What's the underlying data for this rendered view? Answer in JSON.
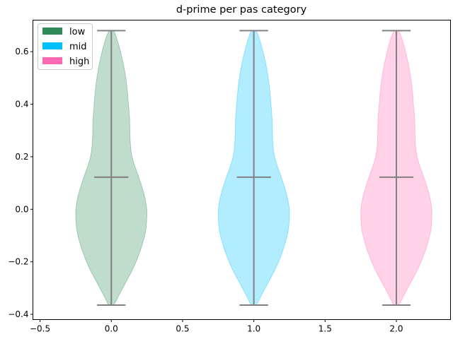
{
  "chart_data": {
    "type": "violin",
    "title": "d-prime per pas category",
    "xlabel": "",
    "ylabel": "",
    "xlim": [
      -0.55,
      2.38
    ],
    "ylim": [
      -0.42,
      0.72
    ],
    "xticks": [
      -0.5,
      0.0,
      0.5,
      1.0,
      1.5,
      2.0
    ],
    "xtick_labels": [
      "−0.5",
      "0.0",
      "0.5",
      "1.0",
      "1.5",
      "2.0"
    ],
    "yticks": [
      -0.4,
      -0.2,
      0.0,
      0.2,
      0.4,
      0.6
    ],
    "ytick_labels": [
      "−0.4",
      "−0.2",
      "0.0",
      "0.2",
      "0.4",
      "0.6"
    ],
    "legend_position": "upper-left",
    "density_y": [
      -0.365,
      -0.33,
      -0.28,
      -0.22,
      -0.15,
      -0.08,
      -0.02,
      0.0,
      0.05,
      0.12,
      0.2,
      0.28,
      0.34,
      0.4,
      0.47,
      0.54,
      0.6,
      0.64,
      0.68
    ],
    "density_halfwidth": [
      0.02,
      0.05,
      0.1,
      0.16,
      0.21,
      0.245,
      0.25,
      0.25,
      0.235,
      0.195,
      0.14,
      0.13,
      0.13,
      0.12,
      0.11,
      0.09,
      0.065,
      0.045,
      0.02
    ],
    "series": [
      {
        "name": "low",
        "position": 0.0,
        "min": -0.365,
        "max": 0.68,
        "mean": 0.122,
        "color": "#2e8b57"
      },
      {
        "name": "mid",
        "position": 1.0,
        "min": -0.365,
        "max": 0.68,
        "mean": 0.122,
        "color": "#00bfff"
      },
      {
        "name": "high",
        "position": 2.0,
        "min": -0.365,
        "max": 0.68,
        "mean": 0.122,
        "color": "#ff69b4"
      }
    ],
    "line_color": "#808080",
    "fill_alpha": 0.3
  }
}
